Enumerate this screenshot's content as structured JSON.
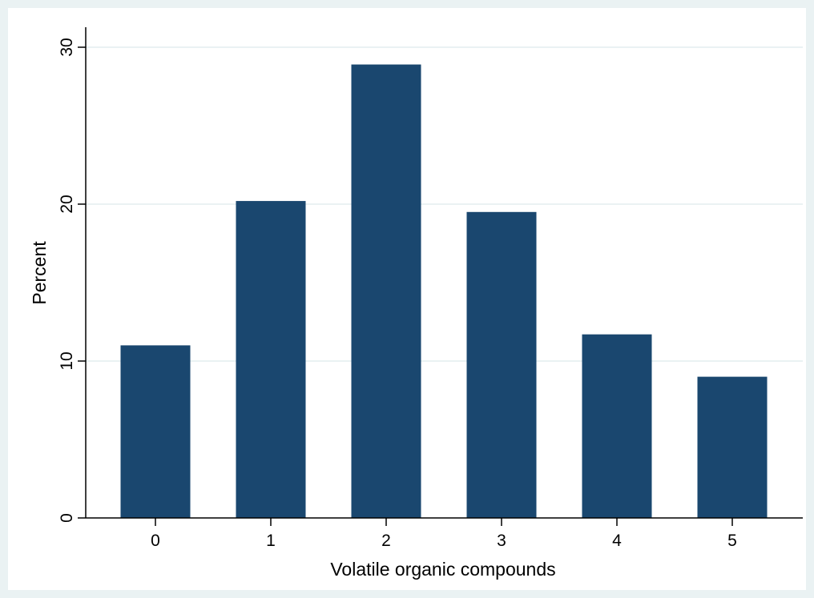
{
  "chart_data": {
    "type": "bar",
    "categories": [
      "0",
      "1",
      "2",
      "3",
      "4",
      "5"
    ],
    "values": [
      11.0,
      20.2,
      28.9,
      19.5,
      11.7,
      9.0
    ],
    "title": "",
    "xlabel": "Volatile organic compounds",
    "ylabel": "Percent",
    "ylim": [
      0,
      30
    ],
    "yticks": [
      "0",
      "10",
      "20",
      "30"
    ],
    "grid": true,
    "legend": "none"
  },
  "colors": {
    "outer_background": "#eaf2f3",
    "plot_background": "#ffffff",
    "bar": "#1a476f",
    "gridline": "#eaf2f3",
    "axis": "#000000"
  }
}
